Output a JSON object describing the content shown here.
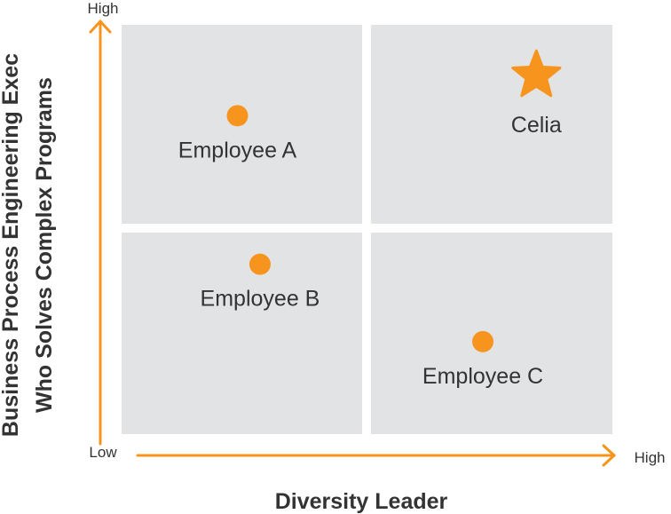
{
  "colors": {
    "accent": "#f7941d",
    "quadrant": "#e2e3e5",
    "text": "#333333"
  },
  "axes": {
    "y_high": "High",
    "x_low": "Low",
    "x_high": "High",
    "x_title": "Diversity Leader",
    "y_title_line1": "Business Process Engineering Exec",
    "y_title_line2": "Who Solves Complex Programs"
  },
  "chart_data": {
    "type": "scatter",
    "xlabel": "Diversity Leader",
    "ylabel": "Business Process Engineering Exec Who Solves Complex Programs",
    "xlim": [
      0,
      1
    ],
    "ylim": [
      0,
      1
    ],
    "points": [
      {
        "label": "Employee A",
        "x": 0.236,
        "y": 0.778,
        "marker": "circle"
      },
      {
        "label": "Employee B",
        "x": 0.282,
        "y": 0.415,
        "marker": "circle"
      },
      {
        "label": "Employee C",
        "x": 0.736,
        "y": 0.226,
        "marker": "circle"
      },
      {
        "label": "Celia",
        "x": 0.845,
        "y": 0.876,
        "marker": "star"
      }
    ]
  }
}
